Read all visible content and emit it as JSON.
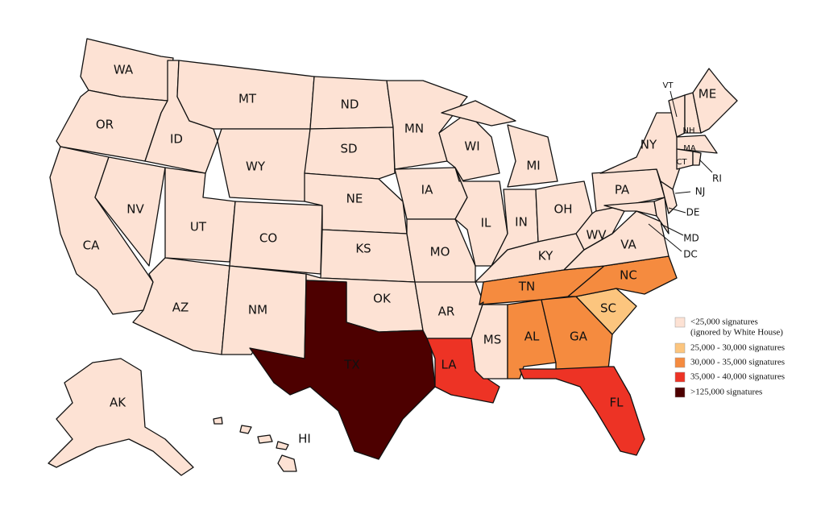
{
  "states": [
    {
      "label": "WA",
      "color": "#fde2d4"
    },
    {
      "label": "OR",
      "color": "#fde2d4"
    },
    {
      "label": "CA",
      "color": "#fde2d4"
    },
    {
      "label": "NV",
      "color": "#fde2d4"
    },
    {
      "label": "ID",
      "color": "#fde2d4"
    },
    {
      "label": "MT",
      "color": "#fde2d4"
    },
    {
      "label": "WY",
      "color": "#fde2d4"
    },
    {
      "label": "UT",
      "color": "#fde2d4"
    },
    {
      "label": "CO",
      "color": "#fde2d4"
    },
    {
      "label": "AZ",
      "color": "#fde2d4"
    },
    {
      "label": "NM",
      "color": "#fde2d4"
    },
    {
      "label": "ND",
      "color": "#fde2d4"
    },
    {
      "label": "SD",
      "color": "#fde2d4"
    },
    {
      "label": "NE",
      "color": "#fde2d4"
    },
    {
      "label": "KS",
      "color": "#fde2d4"
    },
    {
      "label": "OK",
      "color": "#fde2d4"
    },
    {
      "label": "TX",
      "color": "#4d0000"
    },
    {
      "label": "MN",
      "color": "#fde2d4"
    },
    {
      "label": "IA",
      "color": "#fde2d4"
    },
    {
      "label": "MO",
      "color": "#fde2d4"
    },
    {
      "label": "AR",
      "color": "#fde2d4"
    },
    {
      "label": "LA",
      "color": "#ed3325"
    },
    {
      "label": "WI",
      "color": "#fde2d4"
    },
    {
      "label": "IL",
      "color": "#fde2d4"
    },
    {
      "label": "MI",
      "color": "#fde2d4"
    },
    {
      "label": "IN",
      "color": "#fde2d4"
    },
    {
      "label": "OH",
      "color": "#fde2d4"
    },
    {
      "label": "KY",
      "color": "#fde2d4"
    },
    {
      "label": "TN",
      "color": "#f58b3f"
    },
    {
      "label": "MS",
      "color": "#fde2d4"
    },
    {
      "label": "AL",
      "color": "#f58b3f"
    },
    {
      "label": "GA",
      "color": "#f58b3f"
    },
    {
      "label": "FL",
      "color": "#ed3325"
    },
    {
      "label": "SC",
      "color": "#fcc57e"
    },
    {
      "label": "NC",
      "color": "#f58b3f"
    },
    {
      "label": "VA",
      "color": "#fde2d4"
    },
    {
      "label": "WV",
      "color": "#fde2d4"
    },
    {
      "label": "PA",
      "color": "#fde2d4"
    },
    {
      "label": "NY",
      "color": "#fde2d4"
    },
    {
      "label": "MD",
      "color": "#fde2d4"
    },
    {
      "label": "DE",
      "color": "#fde2d4"
    },
    {
      "label": "NJ",
      "color": "#fde2d4"
    },
    {
      "label": "VT",
      "color": "#fde2d4"
    },
    {
      "label": "NH",
      "color": "#fde2d4"
    },
    {
      "label": "ME",
      "color": "#fde2d4"
    },
    {
      "label": "MA",
      "color": "#fde2d4"
    },
    {
      "label": "CT",
      "color": "#fde2d4"
    },
    {
      "label": "RI",
      "color": "#fde2d4"
    },
    {
      "label": "AK",
      "color": "#fde2d4"
    },
    {
      "label": "HI",
      "color": "#fde2d4"
    },
    {
      "label": "DC",
      "color": "#fde2d4"
    }
  ],
  "legend": {
    "items": [
      {
        "lines": [
          "<25,000 signatures",
          "(ignored by White House)"
        ],
        "color": "#fde2d4"
      },
      {
        "lines": [
          "25,000 - 30,000 signatures"
        ],
        "color": "#fcc57e"
      },
      {
        "lines": [
          "30,000 - 35,000 signatures"
        ],
        "color": "#f58b3f"
      },
      {
        "lines": [
          "35,000 - 40,000 signatures"
        ],
        "color": "#ed3325"
      },
      {
        "lines": [
          ">125,000 signatures"
        ],
        "color": "#4d0000"
      }
    ]
  }
}
